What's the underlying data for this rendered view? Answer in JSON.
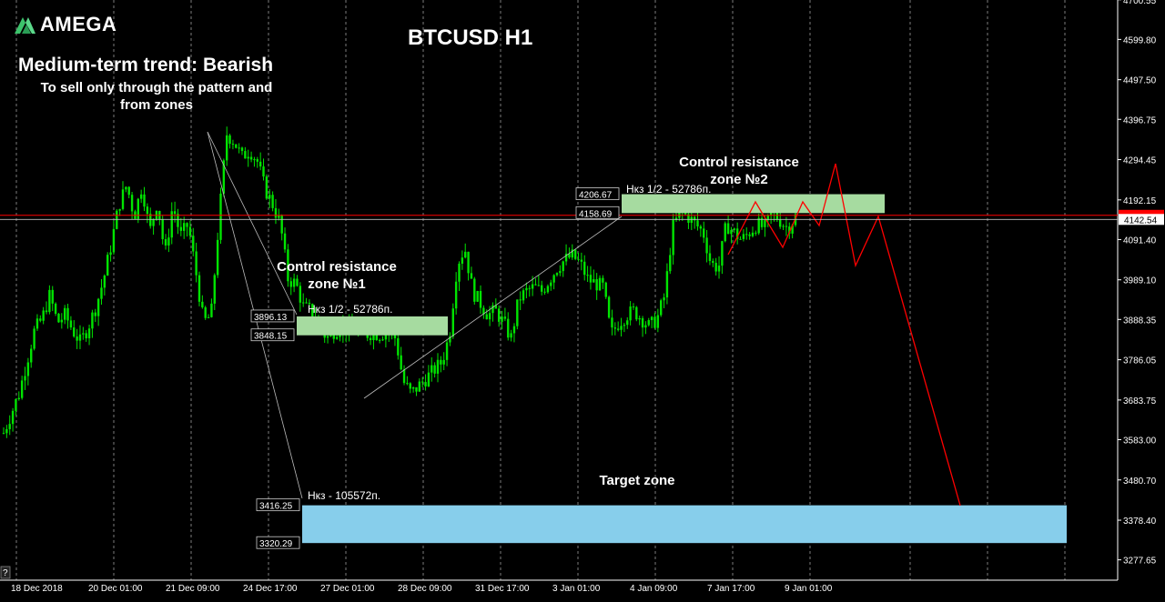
{
  "logo": {
    "text": "AMEGA"
  },
  "title": "BTCUSD H1",
  "trend": {
    "heading": "Medium-term trend: Bearish",
    "note_line1": "To sell only through the pattern and",
    "note_line2": "from zones"
  },
  "labels": {
    "zone1_line1": "Control resistance",
    "zone1_line2": "zone №1",
    "zone2_line1": "Control resistance",
    "zone2_line2": "zone №2",
    "target": "Target zone",
    "zone1_nkz": "Нкз 1/2 - 52786п.",
    "zone2_nkz": "Нкз 1/2 - 52786п.",
    "target_nkz": "Нкз - 105572п."
  },
  "colors": {
    "background": "#000000",
    "candles": "#00e400",
    "green_zone": "#a6dba0",
    "blue_zone": "#87ceeb",
    "bid_line": "#ff0000",
    "projection": "#ff0000",
    "grid": "#9a9a9a"
  },
  "chart_data": {
    "type": "candlestick",
    "symbol": "BTCUSD",
    "timeframe": "H1",
    "ylim": [
      3226,
      4700
    ],
    "y_ticks": [
      "4700.55",
      "4599.80",
      "4497.50",
      "4396.75",
      "4294.45",
      "4192.15",
      "4091.40",
      "3989.10",
      "3888.35",
      "3786.05",
      "3683.75",
      "3583.00",
      "3480.70",
      "3378.40",
      "3277.65"
    ],
    "x_ticks": [
      "18 Dec 2018",
      "20 Dec 01:00",
      "21 Dec 09:00",
      "24 Dec 17:00",
      "27 Dec 01:00",
      "28 Dec 09:00",
      "31 Dec 17:00",
      "3 Jan 01:00",
      "4 Jan 09:00",
      "7 Jan 17:00",
      "9 Jan 01:00"
    ],
    "current_price": "4142.54",
    "bid_level": 4153,
    "zones": [
      {
        "name": "Control resistance zone №1",
        "top": "3896.13",
        "bottom": "3848.15",
        "color": "#a6dba0"
      },
      {
        "name": "Control resistance zone №2",
        "top": "4206.67",
        "bottom": "4158.69",
        "color": "#a6dba0"
      },
      {
        "name": "Target zone",
        "top": "3416.25",
        "bottom": "3320.29",
        "color": "#87ceeb"
      }
    ],
    "price_path": [
      3600,
      3650,
      3700,
      3780,
      3860,
      3890,
      3950,
      3880,
      3900,
      3860,
      3830,
      3870,
      3920,
      3990,
      4080,
      4180,
      4230,
      4150,
      4230,
      4110,
      4190,
      4050,
      4180,
      4100,
      4130,
      4010,
      3880,
      3900,
      4140,
      4360,
      4340,
      4300,
      4320,
      4290,
      4220,
      4180,
      4130,
      3990,
      3980,
      3920,
      3910,
      3880,
      3840,
      3860,
      3870,
      3860,
      3860,
      3850,
      3855,
      3850,
      3860,
      3840,
      3730,
      3700,
      3720,
      3740,
      3760,
      3780,
      3850,
      4030,
      4070,
      3960,
      3930,
      3900,
      3910,
      3880,
      3840,
      3940,
      3960,
      3970,
      3960,
      3990,
      4020,
      4040,
      4050,
      4030,
      3990,
      3980,
      3970,
      3850,
      3880,
      3900,
      3910,
      3890,
      3870,
      3890,
      3950,
      4120,
      4160,
      4150,
      4130,
      4110,
      4030,
      4020,
      4130,
      4110,
      4090,
      4110,
      4130,
      4120,
      4160,
      4140,
      4120,
      4150
    ]
  }
}
